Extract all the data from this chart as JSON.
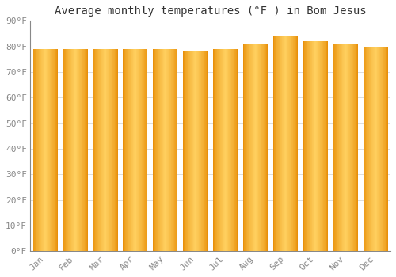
{
  "title": "Average monthly temperatures (°F ) in Bom Jesus",
  "months": [
    "Jan",
    "Feb",
    "Mar",
    "Apr",
    "May",
    "Jun",
    "Jul",
    "Aug",
    "Sep",
    "Oct",
    "Nov",
    "Dec"
  ],
  "values": [
    79,
    79,
    79,
    79,
    79,
    78,
    79,
    81,
    84,
    82,
    81,
    80
  ],
  "ylim": [
    0,
    90
  ],
  "yticks": [
    0,
    10,
    20,
    30,
    40,
    50,
    60,
    70,
    80,
    90
  ],
  "ytick_labels": [
    "0°F",
    "10°F",
    "20°F",
    "30°F",
    "40°F",
    "50°F",
    "60°F",
    "70°F",
    "80°F",
    "90°F"
  ],
  "bar_color_dark": "#E8900A",
  "bar_color_mid": "#F5A800",
  "bar_color_light": "#FFD060",
  "background_color": "#FFFFFF",
  "grid_color": "#DDDDDD",
  "title_fontsize": 10,
  "tick_fontsize": 8,
  "bar_width": 0.82
}
